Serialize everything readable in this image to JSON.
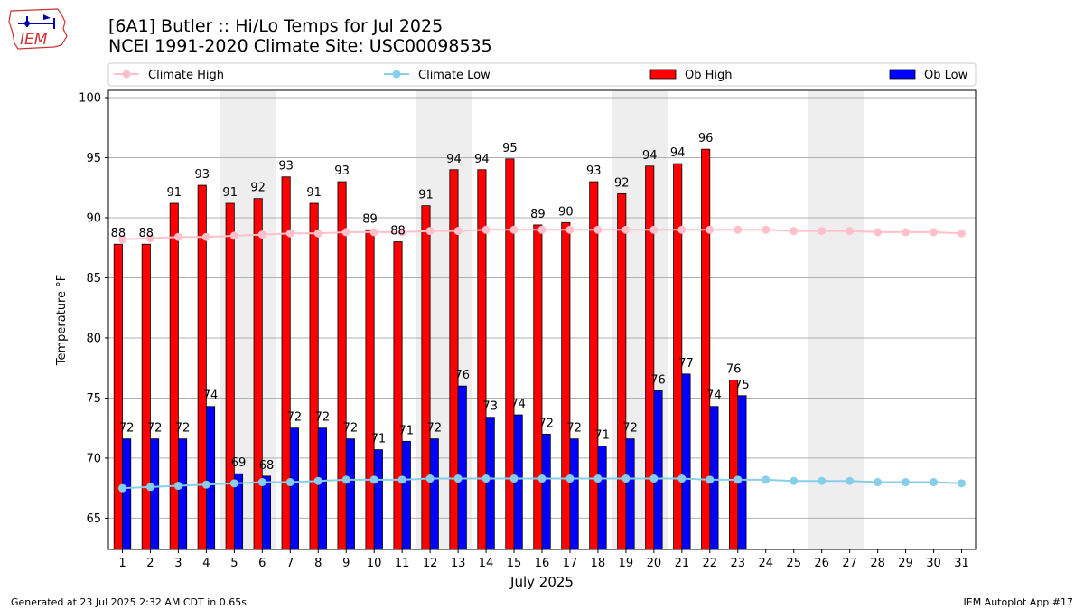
{
  "header": {
    "title_line1": "[6A1] Butler :: Hi/Lo Temps for Jul 2025",
    "title_line2": "NCEI 1991-2020 Climate Site: USC00098535",
    "logo_text": "IEM"
  },
  "footer": {
    "left": "Generated at 23 Jul 2025 2:32 AM CDT in 0.65s",
    "right": "IEM Autoplot App #17"
  },
  "chart_data": {
    "type": "bar",
    "title": "[6A1] Butler :: Hi/Lo Temps for Jul 2025",
    "subtitle": "NCEI 1991-2020 Climate Site: USC00098535",
    "xlabel": "July 2025",
    "ylabel": "Temperature °F",
    "ylim": [
      62.4,
      100.6
    ],
    "yticks": [
      65,
      70,
      75,
      80,
      85,
      90,
      95,
      100
    ],
    "grid": true,
    "legend_position": "top",
    "days": [
      1,
      2,
      3,
      4,
      5,
      6,
      7,
      8,
      9,
      10,
      11,
      12,
      13,
      14,
      15,
      16,
      17,
      18,
      19,
      20,
      21,
      22,
      23,
      24,
      25,
      26,
      27,
      28,
      29,
      30,
      31
    ],
    "weekend_days": [
      5,
      6,
      12,
      13,
      19,
      20,
      26,
      27
    ],
    "colors": {
      "ob_high": "#ff0000",
      "ob_low": "#0000ff",
      "climate_high": "#ffc0cb",
      "climate_low": "#87ceeb",
      "weekend_shade": "#eeeeee"
    },
    "series": [
      {
        "name": "Climate High",
        "kind": "line",
        "values": [
          88.2,
          88.3,
          88.4,
          88.4,
          88.5,
          88.6,
          88.7,
          88.7,
          88.8,
          88.8,
          88.8,
          88.9,
          88.9,
          89.0,
          89.0,
          89.0,
          89.0,
          89.0,
          89.0,
          89.0,
          89.0,
          89.0,
          89.0,
          89.0,
          88.9,
          88.9,
          88.9,
          88.8,
          88.8,
          88.8,
          88.7
        ]
      },
      {
        "name": "Climate Low",
        "kind": "line",
        "values": [
          67.5,
          67.6,
          67.7,
          67.8,
          67.9,
          68.0,
          68.0,
          68.1,
          68.2,
          68.2,
          68.2,
          68.3,
          68.3,
          68.3,
          68.3,
          68.3,
          68.3,
          68.3,
          68.3,
          68.3,
          68.3,
          68.2,
          68.2,
          68.2,
          68.1,
          68.1,
          68.1,
          68.0,
          68.0,
          68.0,
          67.9
        ]
      },
      {
        "name": "Ob High",
        "kind": "bar",
        "values": [
          87.8,
          87.8,
          91.2,
          92.7,
          91.2,
          91.6,
          93.4,
          91.2,
          93.0,
          89.0,
          88.0,
          91.0,
          94.0,
          94.0,
          94.9,
          89.4,
          89.6,
          93.0,
          92.0,
          94.3,
          94.5,
          95.7,
          76.5
        ],
        "labels": [
          "88",
          "88",
          "91",
          "93",
          "91",
          "92",
          "93",
          "91",
          "93",
          "89",
          "88",
          "91",
          "94",
          "94",
          "95",
          "89",
          "90",
          "93",
          "92",
          "94",
          "94",
          "96",
          "76"
        ]
      },
      {
        "name": "Ob Low",
        "kind": "bar",
        "values": [
          71.6,
          71.6,
          71.6,
          74.3,
          68.7,
          68.5,
          72.5,
          72.5,
          71.6,
          70.7,
          71.4,
          71.6,
          76.0,
          73.4,
          73.6,
          72.0,
          71.6,
          71.0,
          71.6,
          75.6,
          77.0,
          74.3,
          75.2
        ],
        "labels": [
          "72",
          "72",
          "72",
          "74",
          "69",
          "68",
          "72",
          "72",
          "72",
          "71",
          "71",
          "72",
          "76",
          "73",
          "74",
          "72",
          "72",
          "71",
          "72",
          "76",
          "77",
          "74",
          "75"
        ]
      }
    ]
  }
}
